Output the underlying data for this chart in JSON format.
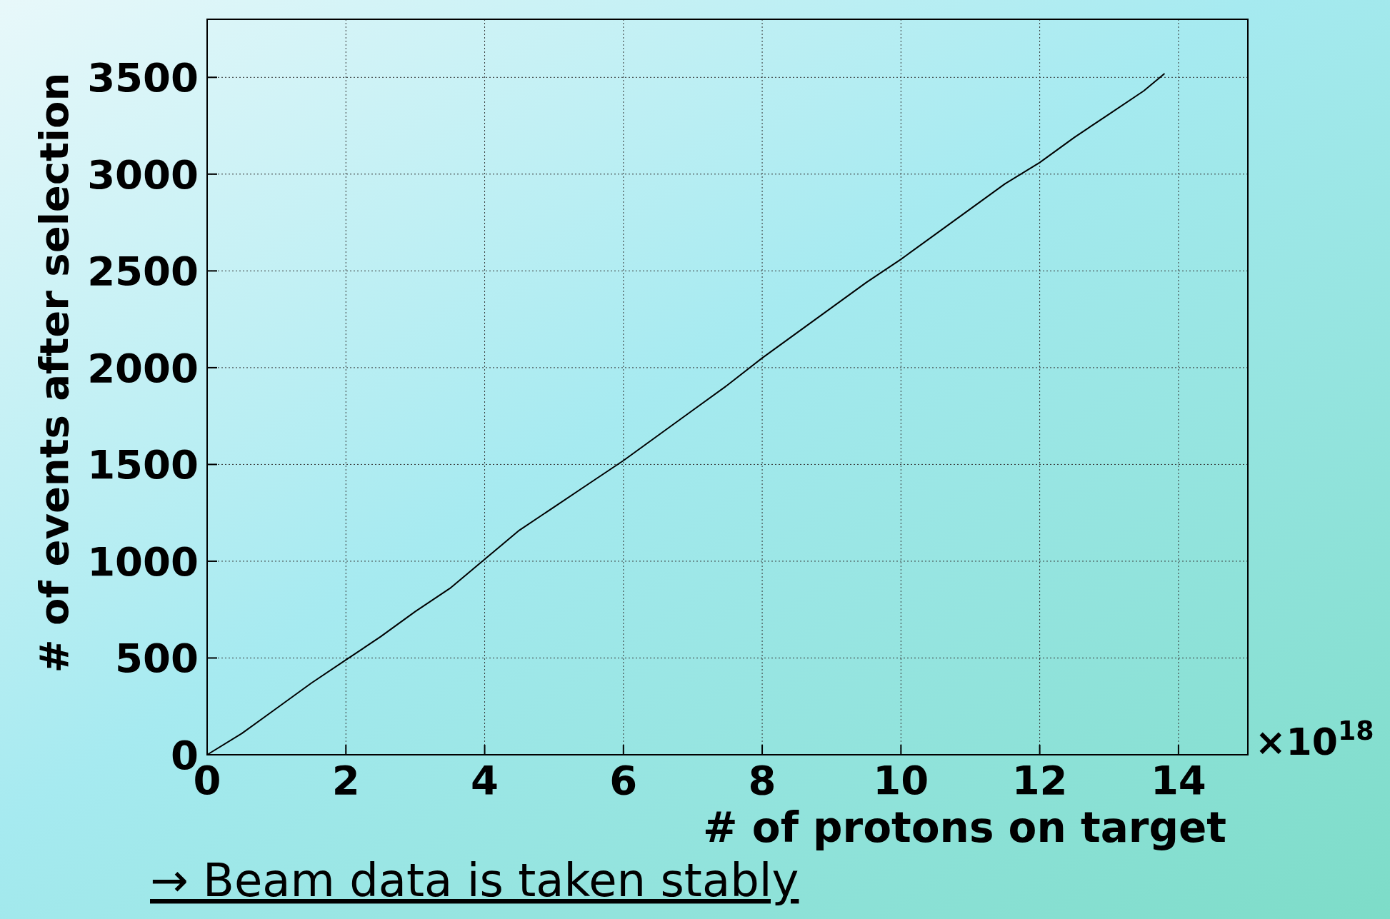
{
  "chart_data": {
    "type": "line",
    "xlabel": "# of protons on target",
    "ylabel": "# of events after selection",
    "annotations": [
      "×10$^{18}$",
      "→ Beam data is taken stably"
    ],
    "x": [
      0,
      0.5,
      1,
      1.5,
      2,
      2.5,
      3,
      3.5,
      4,
      4.5,
      5,
      5.5,
      6,
      6.5,
      7,
      7.5,
      8,
      8.5,
      9,
      9.5,
      10,
      10.5,
      11,
      11.5,
      12,
      12.5,
      13,
      13.5,
      13.8
    ],
    "series": [
      {
        "color": "#000000",
        "values": [
          0,
          110,
          240,
          370,
          490,
          610,
          740,
          860,
          1010,
          1160,
          1280,
          1400,
          1520,
          1650,
          1780,
          1910,
          2050,
          2180,
          2310,
          2440,
          2560,
          2690,
          2820,
          2950,
          3060,
          3190,
          3310,
          3430,
          3520
        ]
      }
    ],
    "xlim": [
      0,
      15
    ],
    "xticks": [
      0,
      2,
      4,
      6,
      8,
      10,
      12,
      14
    ],
    "ylim": [
      0,
      3800
    ],
    "yticks": [
      0,
      500,
      1000,
      1500,
      2000,
      2500,
      3000,
      3500
    ],
    "grid": true,
    "marker": "none",
    "line_style": "solid"
  }
}
